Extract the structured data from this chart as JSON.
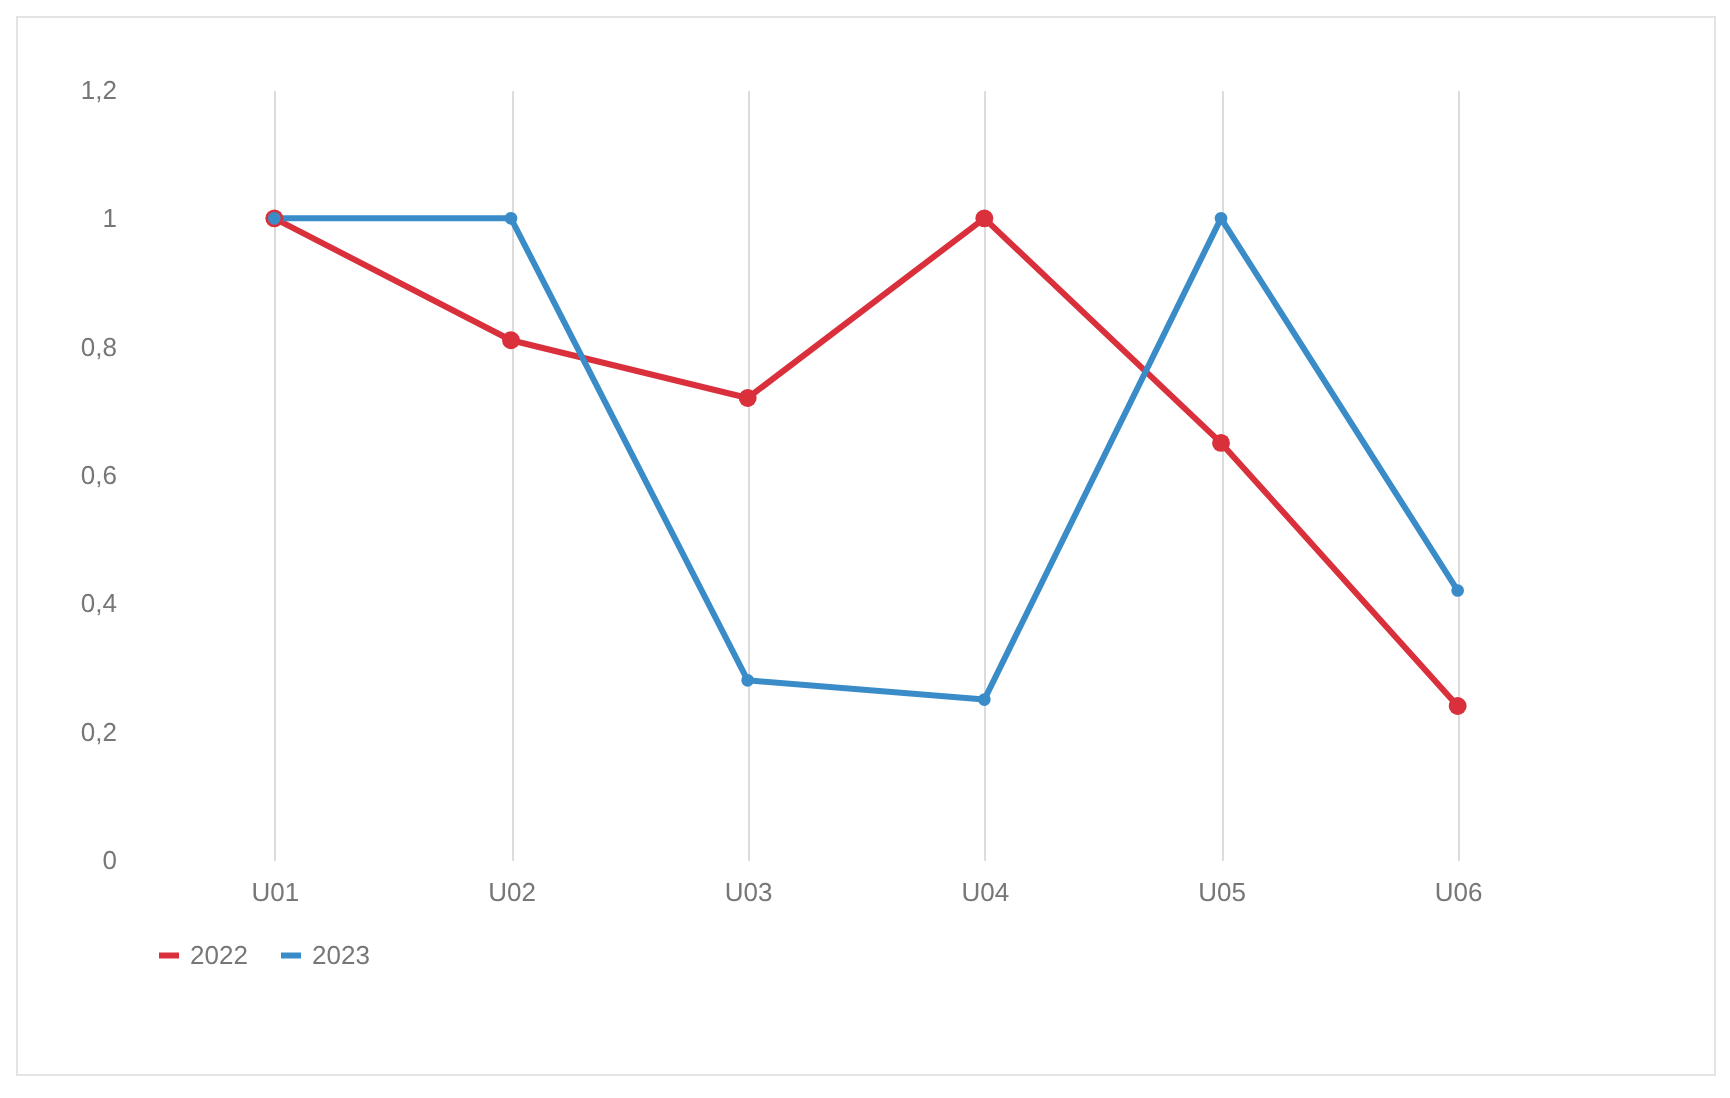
{
  "chart_data": {
    "type": "line",
    "categories": [
      "U01",
      "U02",
      "U03",
      "U04",
      "U05",
      "U06"
    ],
    "series": [
      {
        "name": "2022",
        "color": "#d9303c",
        "values": [
          1,
          0.81,
          0.72,
          1,
          0.65,
          0.24
        ]
      },
      {
        "name": "2023",
        "color": "#3a8cc8",
        "values": [
          1,
          1,
          0.28,
          0.25,
          1,
          0.42
        ]
      }
    ],
    "ylim": [
      0,
      1.2
    ],
    "yticks": [
      {
        "value": 0,
        "label": "0"
      },
      {
        "value": 0.2,
        "label": "0,2"
      },
      {
        "value": 0.4,
        "label": "0,4"
      },
      {
        "value": 0.6,
        "label": "0,6"
      },
      {
        "value": 0.8,
        "label": "0,8"
      },
      {
        "value": 1,
        "label": "1"
      },
      {
        "value": 1.2,
        "label": "1,2"
      }
    ],
    "grid": "x",
    "legend": "bottom",
    "marker": "circle",
    "line_style": "solid"
  }
}
